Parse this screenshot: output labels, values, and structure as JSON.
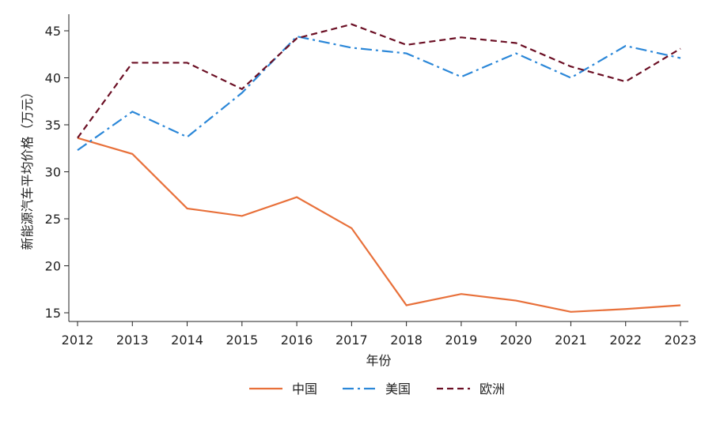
{
  "chart_data": {
    "type": "line",
    "title": "",
    "xlabel": "年份",
    "ylabel": "新能源汽车平均价格（万元）",
    "x": [
      2012,
      2013,
      2014,
      2015,
      2016,
      2017,
      2018,
      2019,
      2020,
      2021,
      2022,
      2023
    ],
    "yticks": [
      15,
      20,
      25,
      30,
      35,
      40,
      45
    ],
    "ylim": [
      14.1,
      46.8
    ],
    "xlim": [
      2011.85,
      2023.15
    ],
    "grid": false,
    "legend_position": "bottom",
    "series": [
      {
        "name": "中国",
        "color": "#e8703a",
        "dash": "solid",
        "values": [
          33.6,
          31.9,
          26.1,
          25.3,
          27.3,
          24.0,
          15.8,
          17.0,
          16.3,
          15.1,
          15.4,
          15.8
        ]
      },
      {
        "name": "美国",
        "color": "#2b87d8",
        "dash": "dashdot",
        "values": [
          32.3,
          36.4,
          33.7,
          38.4,
          44.4,
          43.2,
          42.6,
          40.1,
          42.6,
          40.0,
          43.4,
          42.1
        ]
      },
      {
        "name": "欧洲",
        "color": "#6b0f24",
        "dash": "dash",
        "values": [
          33.6,
          41.6,
          41.6,
          38.8,
          44.2,
          45.7,
          43.5,
          44.3,
          43.7,
          41.2,
          39.6,
          43.1
        ]
      }
    ]
  }
}
